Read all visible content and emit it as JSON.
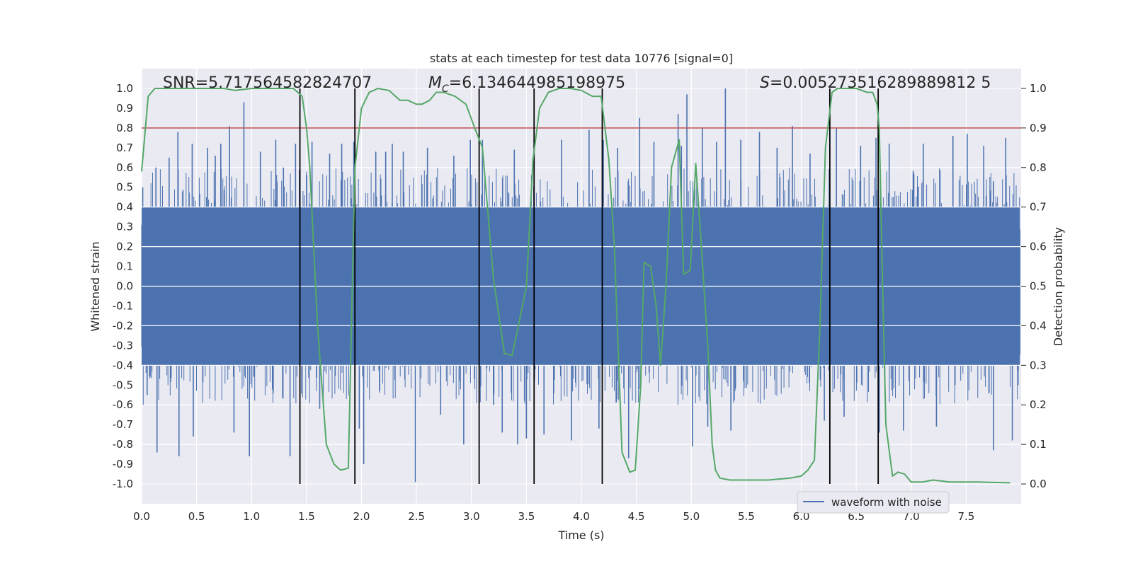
{
  "chart_data": {
    "type": "line",
    "title": "stats at each timestep for test data 10776 [signal=0]",
    "xlabel": "Time (s)",
    "ylabel": "Whitened strain",
    "ylabel_right": "Detection probability",
    "xlim": [
      0.0,
      8.0
    ],
    "ylim": [
      -1.1,
      1.1
    ],
    "ylim_right": [
      -0.05,
      1.05
    ],
    "x_ticks": [
      "0.0",
      "0.5",
      "1.0",
      "1.5",
      "2.0",
      "2.5",
      "3.0",
      "3.5",
      "4.0",
      "4.5",
      "5.0",
      "5.5",
      "6.0",
      "6.5",
      "7.0",
      "7.5"
    ],
    "x_tick_values": [
      0.0,
      0.5,
      1.0,
      1.5,
      2.0,
      2.5,
      3.0,
      3.5,
      4.0,
      4.5,
      5.0,
      5.5,
      6.0,
      6.5,
      7.0,
      7.5
    ],
    "y_ticks": [
      "1.0",
      "0.9",
      "0.8",
      "0.7",
      "0.6",
      "0.5",
      "0.4",
      "0.3",
      "0.2",
      "0.1",
      "0.0",
      "-0.1",
      "-0.2",
      "-0.3",
      "-0.4",
      "-0.5",
      "-0.6",
      "-0.7",
      "-0.8",
      "-0.9",
      "-1.0"
    ],
    "y_tick_values": [
      1.0,
      0.9,
      0.8,
      0.7,
      0.6,
      0.5,
      0.4,
      0.3,
      0.2,
      0.1,
      0.0,
      -0.1,
      -0.2,
      -0.3,
      -0.4,
      -0.5,
      -0.6,
      -0.7,
      -0.8,
      -0.9,
      -1.0
    ],
    "y_ticks_right": [
      "1.0",
      "0.9",
      "0.8",
      "0.7",
      "0.6",
      "0.5",
      "0.4",
      "0.3",
      "0.2",
      "0.1",
      "0.0"
    ],
    "y_tick_values_right": [
      1.0,
      0.9,
      0.8,
      0.7,
      0.6,
      0.5,
      0.4,
      0.3,
      0.2,
      0.1,
      0.0
    ],
    "annotations": {
      "snr": "SNR=5.717564582824707",
      "mc_symbol": "M",
      "mc_sub": "C",
      "mc_value": "=6.134644985198975",
      "s_symbol": "S",
      "s_value": "=0.005273516289889812 5"
    },
    "threshold_right": 0.9,
    "vertical_lines_x": [
      1.44,
      1.94,
      3.07,
      3.57,
      4.19,
      6.26,
      6.7
    ],
    "series": [
      {
        "name": "waveform with noise",
        "color": "#4c72b0",
        "axis": "left",
        "envelope": 0.4,
        "spike_peaks": [
          [
            0.01,
            0.5
          ],
          [
            0.05,
            -0.55
          ],
          [
            0.13,
            0.6
          ],
          [
            0.14,
            -0.84
          ],
          [
            0.25,
            0.65
          ],
          [
            0.33,
            0.78
          ],
          [
            0.34,
            -0.86
          ],
          [
            0.46,
            0.72
          ],
          [
            0.47,
            -0.76
          ],
          [
            0.6,
            0.7
          ],
          [
            0.67,
            0.66
          ],
          [
            0.72,
            0.72
          ],
          [
            0.8,
            0.81
          ],
          [
            0.84,
            -0.74
          ],
          [
            0.93,
            0.93
          ],
          [
            0.98,
            -0.86
          ],
          [
            1.08,
            0.68
          ],
          [
            1.22,
            0.74
          ],
          [
            1.29,
            0.6
          ],
          [
            1.35,
            -0.86
          ],
          [
            1.4,
            0.72
          ],
          [
            1.55,
            0.73
          ],
          [
            1.62,
            -0.62
          ],
          [
            1.71,
            0.67
          ],
          [
            1.82,
            0.72
          ],
          [
            1.93,
            0.73
          ],
          [
            1.98,
            -0.72
          ],
          [
            2.02,
            -0.9
          ],
          [
            2.13,
            0.68
          ],
          [
            2.22,
            0.68
          ],
          [
            2.28,
            0.72
          ],
          [
            2.38,
            0.68
          ],
          [
            2.49,
            -0.99
          ],
          [
            2.6,
            0.7
          ],
          [
            2.72,
            -0.65
          ],
          [
            2.84,
            0.66
          ],
          [
            2.93,
            -0.8
          ],
          [
            2.99,
            0.74
          ],
          [
            3.1,
            0.74
          ],
          [
            3.2,
            -0.6
          ],
          [
            3.28,
            -0.74
          ],
          [
            3.39,
            0.69
          ],
          [
            3.42,
            -0.8
          ],
          [
            3.5,
            -0.77
          ],
          [
            3.66,
            -0.75
          ],
          [
            3.82,
            0.74
          ],
          [
            3.91,
            -0.78
          ],
          [
            4.07,
            0.79
          ],
          [
            4.16,
            -0.72
          ],
          [
            4.2,
            0.74
          ],
          [
            4.33,
            0.7
          ],
          [
            4.43,
            -0.87
          ],
          [
            4.53,
            0.85
          ],
          [
            4.66,
            0.73
          ],
          [
            4.88,
            0.87
          ],
          [
            4.91,
            0.71
          ],
          [
            4.96,
            0.97
          ],
          [
            5.01,
            -0.81
          ],
          [
            5.1,
            0.8
          ],
          [
            5.15,
            -0.71
          ],
          [
            5.23,
            0.73
          ],
          [
            5.31,
            1.0
          ],
          [
            5.36,
            -0.73
          ],
          [
            5.45,
            0.74
          ],
          [
            5.62,
            0.78
          ],
          [
            5.78,
            0.7
          ],
          [
            5.92,
            0.81
          ],
          [
            6.08,
            0.67
          ],
          [
            6.21,
            -0.68
          ],
          [
            6.32,
            0.8
          ],
          [
            6.39,
            -0.66
          ],
          [
            6.54,
            0.71
          ],
          [
            6.68,
            0.75
          ],
          [
            6.71,
            -0.74
          ],
          [
            6.8,
            0.72
          ],
          [
            6.93,
            -0.73
          ],
          [
            7.11,
            0.72
          ],
          [
            7.23,
            -0.71
          ],
          [
            7.38,
            0.76
          ],
          [
            7.51,
            0.77
          ],
          [
            7.66,
            0.71
          ],
          [
            7.75,
            -0.83
          ],
          [
            7.86,
            0.75
          ],
          [
            7.92,
            -0.78
          ]
        ]
      },
      {
        "name": "detection probability",
        "color": "#55a868",
        "axis": "right",
        "x": [
          0.0,
          0.06,
          0.12,
          0.25,
          0.55,
          0.75,
          0.85,
          1.0,
          1.2,
          1.38,
          1.42,
          1.46,
          1.5,
          1.53,
          1.6,
          1.68,
          1.75,
          1.81,
          1.88,
          1.94,
          2.0,
          2.07,
          2.15,
          2.25,
          2.35,
          2.42,
          2.5,
          2.55,
          2.62,
          2.68,
          2.75,
          2.85,
          2.95,
          3.03,
          3.1,
          3.2,
          3.3,
          3.37,
          3.42,
          3.5,
          3.56,
          3.62,
          3.7,
          3.8,
          3.9,
          4.0,
          4.1,
          4.18,
          4.25,
          4.3,
          4.37,
          4.44,
          4.49,
          4.54,
          4.57,
          4.63,
          4.68,
          4.72,
          4.77,
          4.82,
          4.86,
          4.89,
          4.93,
          4.99,
          5.04,
          5.09,
          5.15,
          5.19,
          5.22,
          5.26,
          5.35,
          5.5,
          5.7,
          5.9,
          6.0,
          6.06,
          6.12,
          6.17,
          6.22,
          6.28,
          6.33,
          6.4,
          6.5,
          6.6,
          6.65,
          6.69,
          6.71,
          6.74,
          6.77,
          6.83,
          6.88,
          6.94,
          7.0,
          7.1,
          7.2,
          7.35,
          7.6,
          7.9
        ],
        "y": [
          0.79,
          0.98,
          1.0,
          1.0,
          1.0,
          1.0,
          0.995,
          1.0,
          1.0,
          1.0,
          0.99,
          0.98,
          0.9,
          0.8,
          0.4,
          0.1,
          0.05,
          0.035,
          0.04,
          0.8,
          0.95,
          0.99,
          1.0,
          0.995,
          0.97,
          0.97,
          0.96,
          0.96,
          0.97,
          0.99,
          0.99,
          0.98,
          0.96,
          0.9,
          0.85,
          0.52,
          0.33,
          0.325,
          0.39,
          0.5,
          0.82,
          0.95,
          0.99,
          1.0,
          1.0,
          0.995,
          0.98,
          0.98,
          0.82,
          0.6,
          0.08,
          0.03,
          0.035,
          0.25,
          0.56,
          0.55,
          0.45,
          0.3,
          0.5,
          0.8,
          0.84,
          0.87,
          0.53,
          0.54,
          0.81,
          0.61,
          0.35,
          0.1,
          0.035,
          0.015,
          0.01,
          0.01,
          0.01,
          0.015,
          0.02,
          0.035,
          0.06,
          0.4,
          0.85,
          0.99,
          1.0,
          1.0,
          1.0,
          0.99,
          0.99,
          0.96,
          0.9,
          0.5,
          0.15,
          0.02,
          0.03,
          0.025,
          0.005,
          0.005,
          0.01,
          0.005,
          0.005,
          0.003
        ]
      }
    ],
    "legend": {
      "label": "waveform with noise",
      "location": "bottom-right"
    }
  }
}
